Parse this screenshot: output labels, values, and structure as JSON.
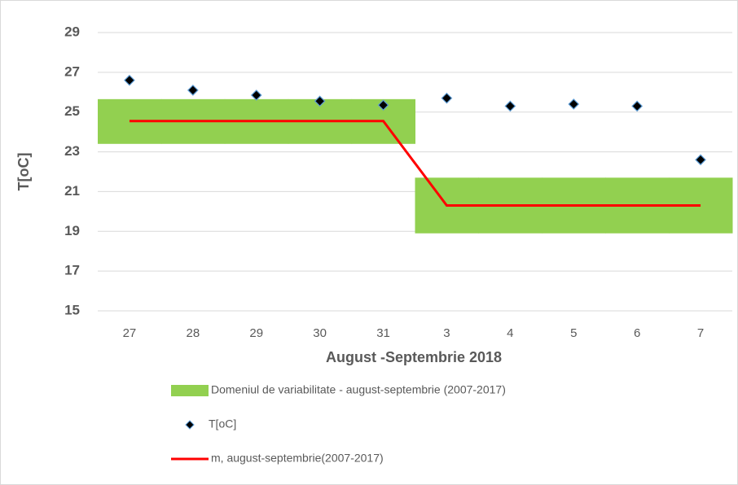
{
  "chart_data": {
    "type": "combo",
    "categories": [
      "27",
      "28",
      "29",
      "30",
      "31",
      "3",
      "4",
      "5",
      "6",
      "7"
    ],
    "x_label": "August -Septembrie 2018",
    "y_label": "T[oC]",
    "ylim": [
      15,
      29
    ],
    "yticks": [
      15,
      17,
      19,
      21,
      23,
      25,
      27,
      29
    ],
    "grid": true,
    "legend": "bottom",
    "series": [
      {
        "name": "Domeniul de variabilitate - august-septembrie (2007-2017)",
        "type": "band",
        "color": "#92d050",
        "low": [
          23.4,
          23.4,
          23.4,
          23.4,
          23.4,
          18.9,
          18.9,
          18.9,
          18.9,
          18.9
        ],
        "high": [
          25.65,
          25.65,
          25.65,
          25.65,
          25.65,
          21.7,
          21.7,
          21.7,
          21.7,
          21.7
        ]
      },
      {
        "name": "T[oC]",
        "type": "scatter",
        "color": "#000000",
        "values": [
          26.6,
          26.1,
          25.85,
          25.55,
          25.35,
          25.7,
          25.3,
          25.4,
          25.3,
          22.6
        ]
      },
      {
        "name": "m, august-septembrie(2007-2017)",
        "type": "line",
        "color": "#ff0000",
        "values": [
          24.55,
          24.55,
          24.55,
          24.55,
          24.55,
          20.3,
          20.3,
          20.3,
          20.3,
          20.3
        ]
      }
    ]
  }
}
